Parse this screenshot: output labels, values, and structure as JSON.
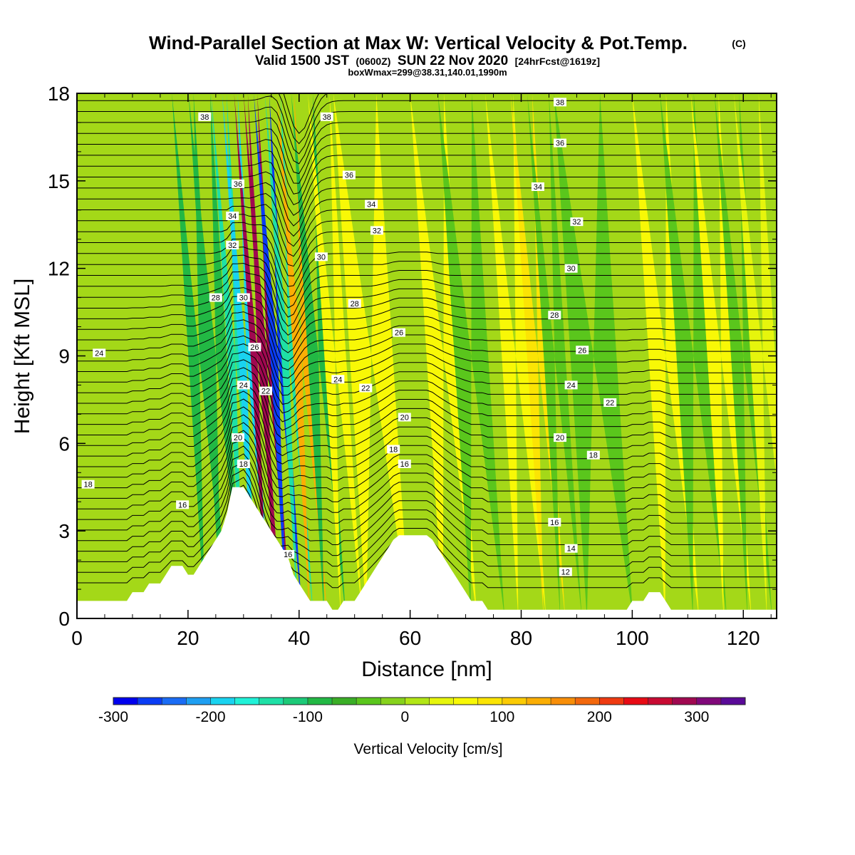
{
  "header": {
    "title": "Wind-Parallel Section at Max W: Vertical Velocity & Pot.Temp.",
    "title_mark": "(C)",
    "subtitle_a": "Valid 1500 JST",
    "subtitle_b": "(0600Z)",
    "subtitle_c": "SUN 22 Nov 2020",
    "subtitle_d": "[24hrFcst@1619z]",
    "subtitle2": "boxWmax=299@38.31,140.01,1990m"
  },
  "colorbar": {
    "label": "Vertical Velocity [cm/s]",
    "tick_labels": [
      "-300",
      "-200",
      "-100",
      "0",
      "100",
      "200",
      "300"
    ],
    "tick_values": [
      -300,
      -200,
      -100,
      0,
      100,
      200,
      300
    ],
    "vmin": -300,
    "step": 25,
    "colors": [
      "#0000ee",
      "#0a3cf5",
      "#1a6cf5",
      "#1e9ff2",
      "#19d3f0",
      "#20f2d8",
      "#1ee0a6",
      "#1cca78",
      "#22b844",
      "#3aae26",
      "#5ac61c",
      "#86d21c",
      "#b2e616",
      "#e6f50c",
      "#f8f806",
      "#fbe404",
      "#fbcb04",
      "#fbae04",
      "#f88e08",
      "#f3680c",
      "#ef3a10",
      "#e80a14",
      "#c80a32",
      "#a00850",
      "#80087a",
      "#5a0a98"
    ]
  },
  "chart_data": {
    "type": "heatmap",
    "title": "Wind-Parallel Section at Max W: Vertical Velocity & Pot.Temp.",
    "xlabel": "Distance [nm]",
    "ylabel": "Height [Kft MSL]",
    "xlim": [
      0,
      126
    ],
    "ylim": [
      0,
      18
    ],
    "xticks": [
      0,
      20,
      40,
      60,
      80,
      100,
      120
    ],
    "yticks": [
      0,
      3,
      6,
      9,
      12,
      15,
      18
    ],
    "xtick_labels": [
      "0",
      "20",
      "40",
      "60",
      "80",
      "100",
      "120"
    ],
    "ytick_labels": [
      "0",
      "3",
      "6",
      "9",
      "12",
      "15",
      "18"
    ],
    "max_w": "boxWmax=299@38.31,140.01,1990m",
    "w_bands": [
      {
        "x": 23,
        "w": -80
      },
      {
        "x": 26,
        "w": -100
      },
      {
        "x": 29.5,
        "w": -150
      },
      {
        "x": 31.5,
        "w": -190
      },
      {
        "x": 33.5,
        "w": 280
      },
      {
        "x": 35.2,
        "w": 299
      },
      {
        "x": 37.2,
        "w": -260
      },
      {
        "x": 39.2,
        "w": -150
      },
      {
        "x": 41.5,
        "w": 130
      },
      {
        "x": 44.5,
        "w": -80
      },
      {
        "x": 47.5,
        "w": 70
      },
      {
        "x": 54,
        "w": 60
      },
      {
        "x": 67,
        "w": 70
      },
      {
        "x": 72,
        "w": -40
      },
      {
        "x": 80,
        "w": 60
      },
      {
        "x": 84,
        "w": 80
      },
      {
        "x": 87,
        "w": -40
      },
      {
        "x": 94,
        "w": -30
      },
      {
        "x": 107,
        "w": 50
      },
      {
        "x": 112,
        "w": -40
      },
      {
        "x": 117,
        "w": 60
      },
      {
        "x": 121,
        "w": -40
      },
      {
        "x": 124.5,
        "w": 30
      }
    ],
    "terrain": [
      [
        0,
        0.6
      ],
      [
        9,
        0.6
      ],
      [
        10,
        0.9
      ],
      [
        12,
        0.9
      ],
      [
        13,
        1.2
      ],
      [
        15,
        1.2
      ],
      [
        16,
        1.5
      ],
      [
        17,
        1.8
      ],
      [
        19,
        1.8
      ],
      [
        20,
        1.5
      ],
      [
        21,
        1.5
      ],
      [
        22,
        1.8
      ],
      [
        23,
        2.1
      ],
      [
        24,
        2.4
      ],
      [
        25,
        2.7
      ],
      [
        26,
        3.0
      ],
      [
        27,
        3.6
      ],
      [
        28,
        4.5
      ],
      [
        30,
        4.5
      ],
      [
        31,
        4.2
      ],
      [
        32,
        3.9
      ],
      [
        33,
        3.6
      ],
      [
        34,
        3.3
      ],
      [
        35,
        3.0
      ],
      [
        36,
        2.7
      ],
      [
        37,
        2.4
      ],
      [
        38,
        2.1
      ],
      [
        39,
        1.5
      ],
      [
        40,
        1.2
      ],
      [
        41,
        0.9
      ],
      [
        42,
        0.6
      ],
      [
        45,
        0.6
      ],
      [
        46,
        0.3
      ],
      [
        47,
        0.3
      ],
      [
        48,
        0.6
      ],
      [
        50,
        0.6
      ],
      [
        51,
        0.9
      ],
      [
        52,
        1.2
      ],
      [
        53,
        1.5
      ],
      [
        54,
        1.8
      ],
      [
        55,
        2.1
      ],
      [
        56,
        2.4
      ],
      [
        57,
        2.7
      ],
      [
        58,
        2.85
      ],
      [
        63,
        2.85
      ],
      [
        64,
        2.7
      ],
      [
        65,
        2.4
      ],
      [
        66,
        2.1
      ],
      [
        67,
        1.8
      ],
      [
        68,
        1.5
      ],
      [
        69,
        1.2
      ],
      [
        70,
        0.9
      ],
      [
        71,
        0.6
      ],
      [
        73,
        0.6
      ],
      [
        74,
        0.3
      ],
      [
        99,
        0.3
      ],
      [
        100,
        0.6
      ],
      [
        102,
        0.6
      ],
      [
        103,
        0.9
      ],
      [
        105,
        0.9
      ],
      [
        106,
        0.6
      ],
      [
        107,
        0.3
      ],
      [
        126,
        0.3
      ]
    ],
    "isentropes": {
      "base": 12,
      "step": 2,
      "count": 14,
      "labels": [
        "12",
        "14",
        "16",
        "16",
        "16",
        "16",
        "18",
        "18",
        "18",
        "18",
        "20",
        "20",
        "20",
        "22",
        "22",
        "22",
        "24",
        "24",
        "24",
        "24",
        "26",
        "26",
        "26",
        "28",
        "28",
        "28",
        "30",
        "30",
        "30",
        "32",
        "32",
        "32",
        "34",
        "34",
        "34",
        "36",
        "36",
        "36",
        "38",
        "38",
        "38"
      ],
      "label_points": [
        [
          88,
          1.6
        ],
        [
          89,
          2.4
        ],
        [
          86,
          3.3
        ],
        [
          38,
          2.2
        ],
        [
          19,
          3.9
        ],
        [
          59,
          5.3
        ],
        [
          2,
          4.6
        ],
        [
          30,
          5.3
        ],
        [
          93,
          5.6
        ],
        [
          57,
          5.8
        ],
        [
          29,
          6.2
        ],
        [
          59,
          6.9
        ],
        [
          87,
          6.2
        ],
        [
          34,
          7.8
        ],
        [
          52,
          7.9
        ],
        [
          96,
          7.4
        ],
        [
          4,
          9.1
        ],
        [
          30,
          8.0
        ],
        [
          47,
          8.2
        ],
        [
          89,
          8.0
        ],
        [
          32,
          9.3
        ],
        [
          58,
          9.8
        ],
        [
          91,
          9.2
        ],
        [
          25,
          11.0
        ],
        [
          50,
          10.8
        ],
        [
          86,
          10.4
        ],
        [
          30,
          11.0
        ],
        [
          44,
          12.4
        ],
        [
          89,
          12.0
        ],
        [
          28,
          12.8
        ],
        [
          54,
          13.3
        ],
        [
          90,
          13.6
        ],
        [
          28,
          13.8
        ],
        [
          53,
          14.2
        ],
        [
          83,
          14.8
        ],
        [
          29,
          14.9
        ],
        [
          49,
          15.2
        ],
        [
          87,
          16.3
        ],
        [
          23,
          17.2
        ],
        [
          45,
          17.2
        ],
        [
          87,
          17.7
        ]
      ]
    }
  }
}
